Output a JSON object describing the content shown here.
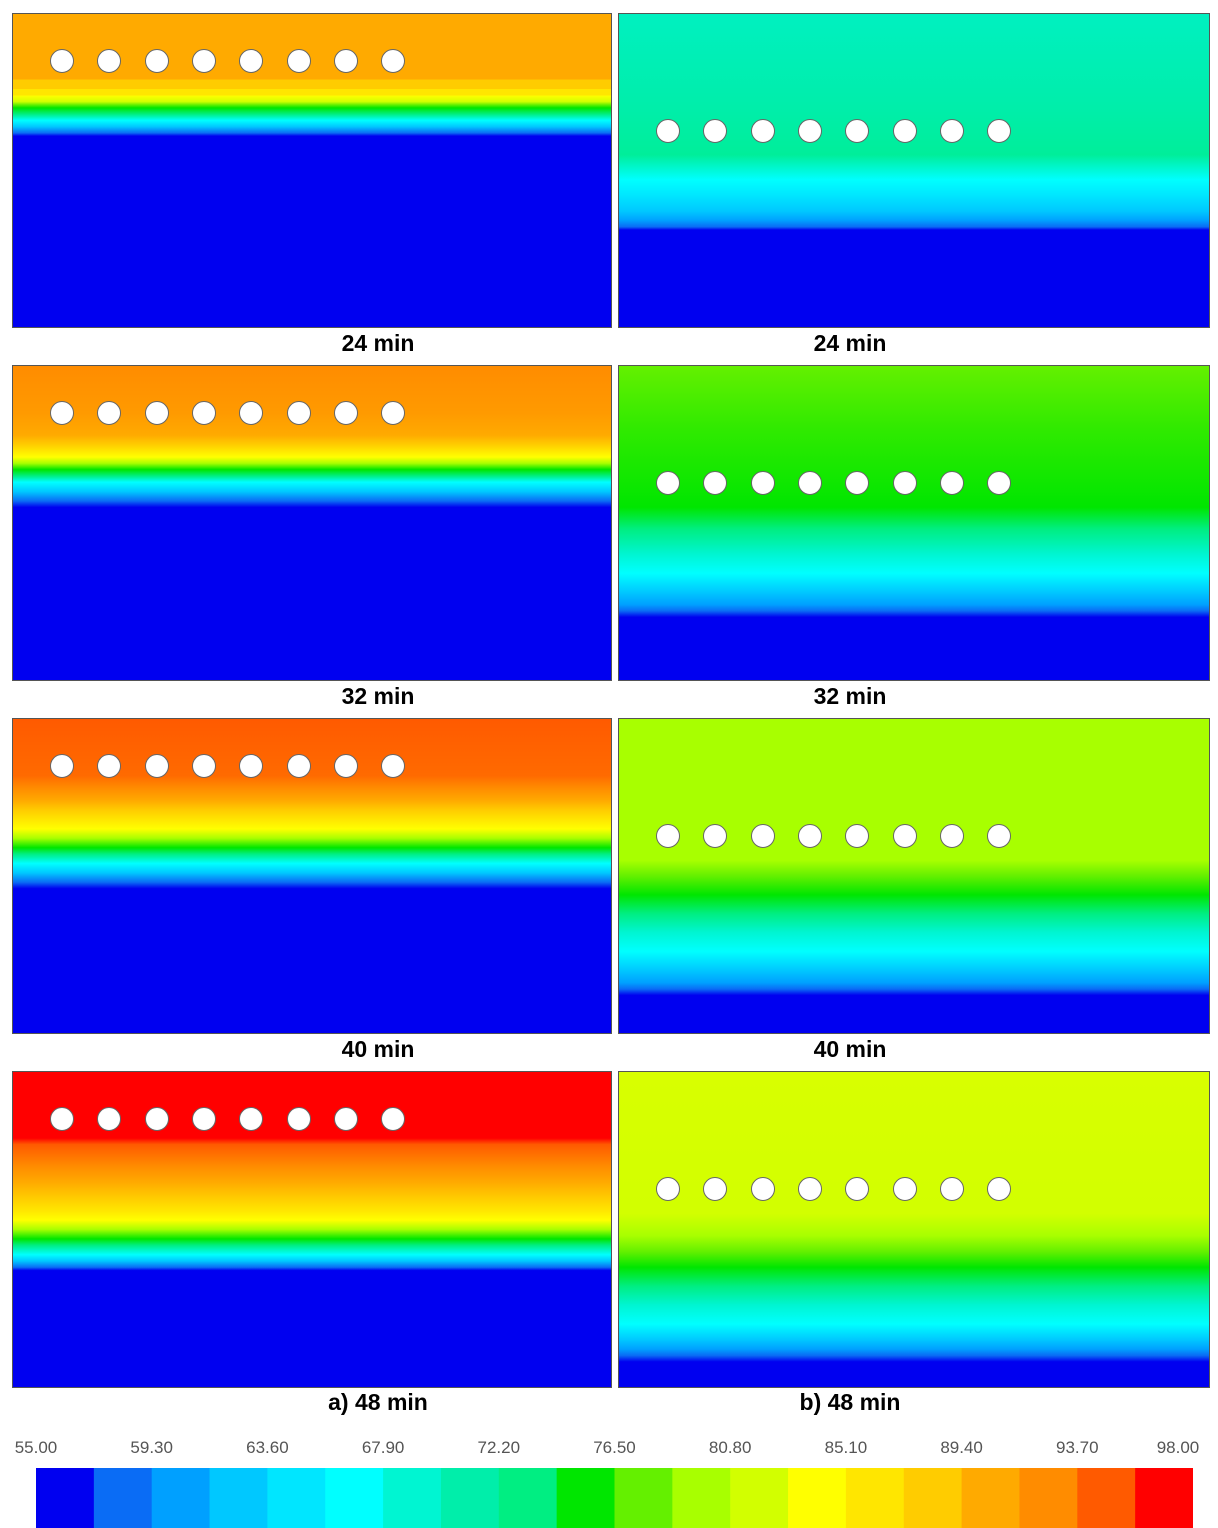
{
  "panels": [
    {
      "caption": "24 min"
    },
    {
      "caption": "24 min"
    },
    {
      "caption": "32 min"
    },
    {
      "caption": "32 min"
    },
    {
      "caption": "40 min"
    },
    {
      "caption": "40 min"
    },
    {
      "caption": "a) 48 min"
    },
    {
      "caption": "b) 48 min"
    }
  ],
  "colorbar": {
    "ticks": [
      {
        "value": 55,
        "label": "55.00"
      },
      {
        "value": 59.3,
        "label": "59.30"
      },
      {
        "value": 63.6,
        "label": "63.60"
      },
      {
        "value": 67.9,
        "label": "67.90"
      },
      {
        "value": 72.2,
        "label": "72.20"
      },
      {
        "value": 76.5,
        "label": "76.50"
      },
      {
        "value": 80.8,
        "label": "80.80"
      },
      {
        "value": 85.1,
        "label": "85.10"
      },
      {
        "value": 89.4,
        "label": "89.40"
      },
      {
        "value": 93.7,
        "label": "93.70"
      },
      {
        "value": 98,
        "label": "98.00"
      }
    ],
    "colors": [
      "#0000f0",
      "#0a6cf5",
      "#00a0ff",
      "#00c8ff",
      "#00e6ff",
      "#00ffff",
      "#00f5d2",
      "#00eeaa",
      "#00ee82",
      "#00e600",
      "#64f000",
      "#a8ff00",
      "#d2ff00",
      "#ffff00",
      "#ffe600",
      "#ffcc00",
      "#ffaa00",
      "#ff8c00",
      "#ff5a00",
      "#ff0000"
    ]
  }
}
